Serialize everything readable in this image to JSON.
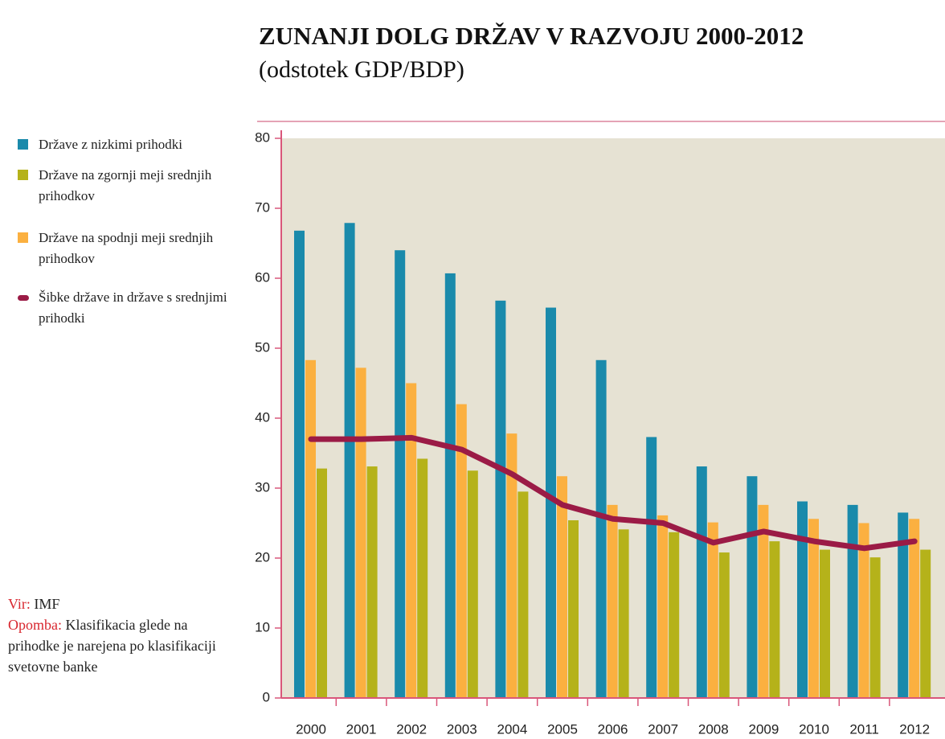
{
  "chart_data": {
    "type": "bar",
    "title": "ZUNANJI DOLG DRŽAV V RAZVOJU 2000-2012",
    "subtitle": "(odstotek GDP/BDP)",
    "categories": [
      "2000",
      "2001",
      "2002",
      "2003",
      "2004",
      "2005",
      "2006",
      "2007",
      "2008",
      "2009",
      "2010",
      "2011",
      "2012"
    ],
    "series": [
      {
        "name": "Države z nizkimi prihodki",
        "color": "#1a8aab",
        "type": "bar",
        "values": [
          66.8,
          67.9,
          64.0,
          60.7,
          56.8,
          55.8,
          48.3,
          37.3,
          33.1,
          31.7,
          28.1,
          27.6,
          26.5
        ]
      },
      {
        "name": "Države na zgornji meji srednjih prihodkov",
        "color": "#b5b21a",
        "type": "bar",
        "values": [
          32.8,
          33.1,
          34.2,
          32.5,
          29.5,
          25.4,
          24.1,
          23.7,
          20.8,
          22.4,
          21.2,
          20.1,
          21.2
        ]
      },
      {
        "name": "Države na spodnji meji srednjih prihodkov",
        "color": "#fbb040",
        "type": "bar",
        "values": [
          48.3,
          47.2,
          45.0,
          42.0,
          37.8,
          31.7,
          27.6,
          26.1,
          25.1,
          27.6,
          25.6,
          25.0,
          25.6
        ]
      },
      {
        "name": "Šibke države in države s srednjimi prihodki",
        "color": "#9b1b46",
        "type": "line",
        "values": [
          37.0,
          37.0,
          37.2,
          35.5,
          32.0,
          27.6,
          25.6,
          25.0,
          22.2,
          23.8,
          22.4,
          21.4,
          22.4
        ]
      }
    ],
    "bar_order": [
      0,
      2,
      1
    ],
    "ylim": [
      0,
      80
    ],
    "yticks": [
      0,
      10,
      20,
      30,
      40,
      50,
      60,
      70,
      80
    ],
    "source_label": "Vir:",
    "source": "IMF",
    "note_label": "Opomba:",
    "note": "Klasifikacia glede na prihodke je narejena po klasifikaciji svetovne banke"
  }
}
